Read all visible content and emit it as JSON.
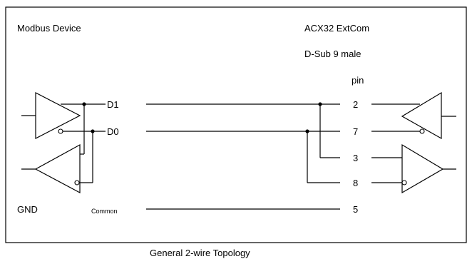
{
  "left_title": "Modbus Device",
  "right_title": "ACX32 ExtCom",
  "connector": "D-Sub 9 male",
  "pin_header": "pin",
  "signals": {
    "d1": "D1",
    "d0": "D0",
    "gnd": "GND",
    "common": "Common"
  },
  "pins": [
    "2",
    "7",
    "3",
    "8",
    "5"
  ],
  "caption": "General 2-wire Topology"
}
